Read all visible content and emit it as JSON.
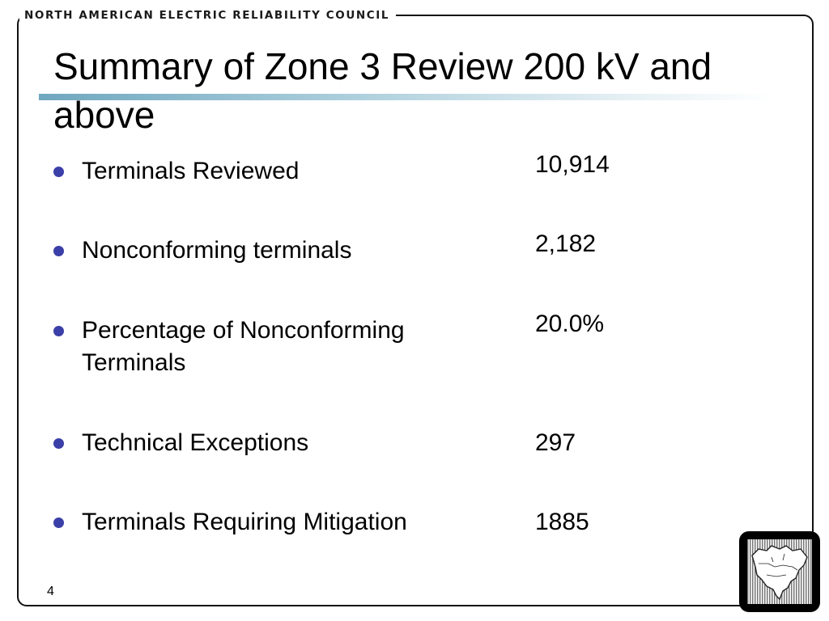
{
  "header": {
    "organization": "NORTH AMERICAN ELECTRIC RELIABILITY COUNCIL"
  },
  "slide": {
    "title": "Summary of Zone 3 Review 200 kV and above",
    "page_number": "4",
    "bullet_color": "#3b3fa8",
    "accent_bar_color": "#6fa7bf",
    "items": [
      {
        "label": "Terminals Reviewed",
        "value": "10,914"
      },
      {
        "label": "Nonconforming terminals",
        "value": "2,182"
      },
      {
        "label": "Percentage of Nonconforming Terminals",
        "value": "20.0%"
      },
      {
        "label": "Technical Exceptions",
        "value": "297"
      },
      {
        "label": "Terminals Requiring Mitigation",
        "value": "1885"
      }
    ]
  },
  "logo": {
    "icon": "north-america-map-icon"
  }
}
